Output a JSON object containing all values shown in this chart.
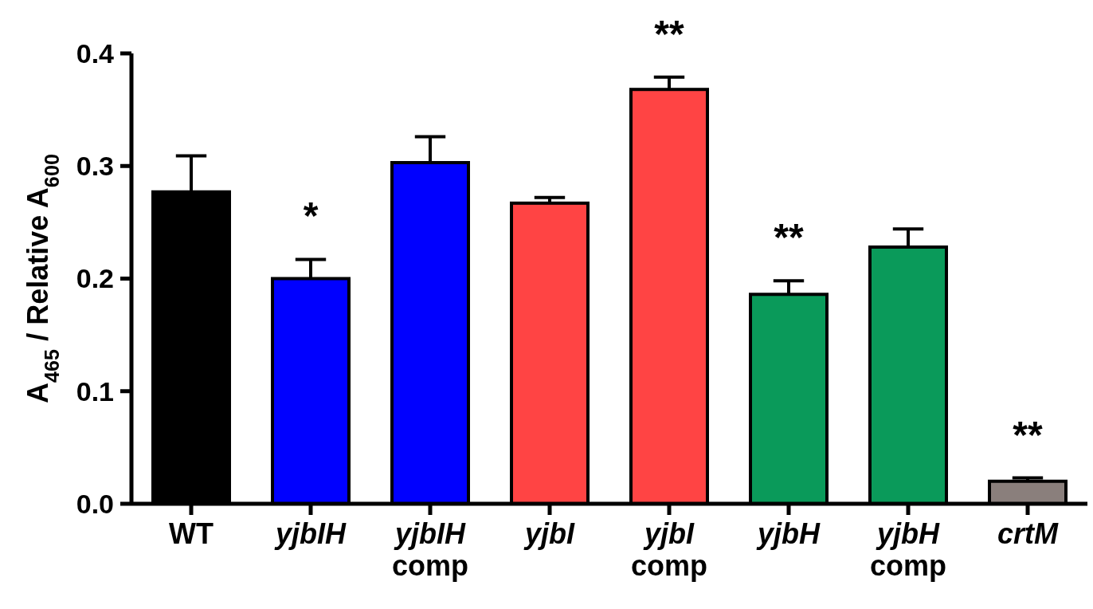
{
  "chart_data": {
    "type": "bar",
    "ylabel": "A$_{465}$ / Relative A$_{600}$",
    "categories": [
      "WT",
      "yjbIH",
      "yjbIH comp",
      "yjbI",
      "yjbI comp",
      "yjbH",
      "yjbH comp",
      "crtM"
    ],
    "values": [
      0.277,
      0.2,
      0.303,
      0.267,
      0.368,
      0.186,
      0.228,
      0.02
    ],
    "errors": [
      0.032,
      0.017,
      0.023,
      0.005,
      0.011,
      0.012,
      0.016,
      0.003
    ],
    "colors": [
      "#000000",
      "#0000ff",
      "#0000ff",
      "#ff4444",
      "#ff4444",
      "#0a9a5a",
      "#0a9a5a",
      "#8a7f7c"
    ],
    "ylim": [
      0,
      0.4
    ],
    "yticks": [
      {
        "value": 0,
        "label": "0.0"
      },
      {
        "value": 0.1,
        "label": "0.1"
      },
      {
        "value": 0.2,
        "label": "0.2"
      },
      {
        "value": 0.3,
        "label": "0.3"
      },
      {
        "value": 0.4,
        "label": "0.4"
      }
    ],
    "annotations": [
      {
        "text": "*",
        "x": "yjbIH",
        "y": 0.217
      },
      {
        "text": "**",
        "x": "yjbI comp",
        "y": 0.379
      },
      {
        "text": "**",
        "x": "yjbH",
        "y": 0.198
      },
      {
        "text": "**",
        "x": "crtM",
        "y": 0.023
      }
    ],
    "grid": false
  }
}
